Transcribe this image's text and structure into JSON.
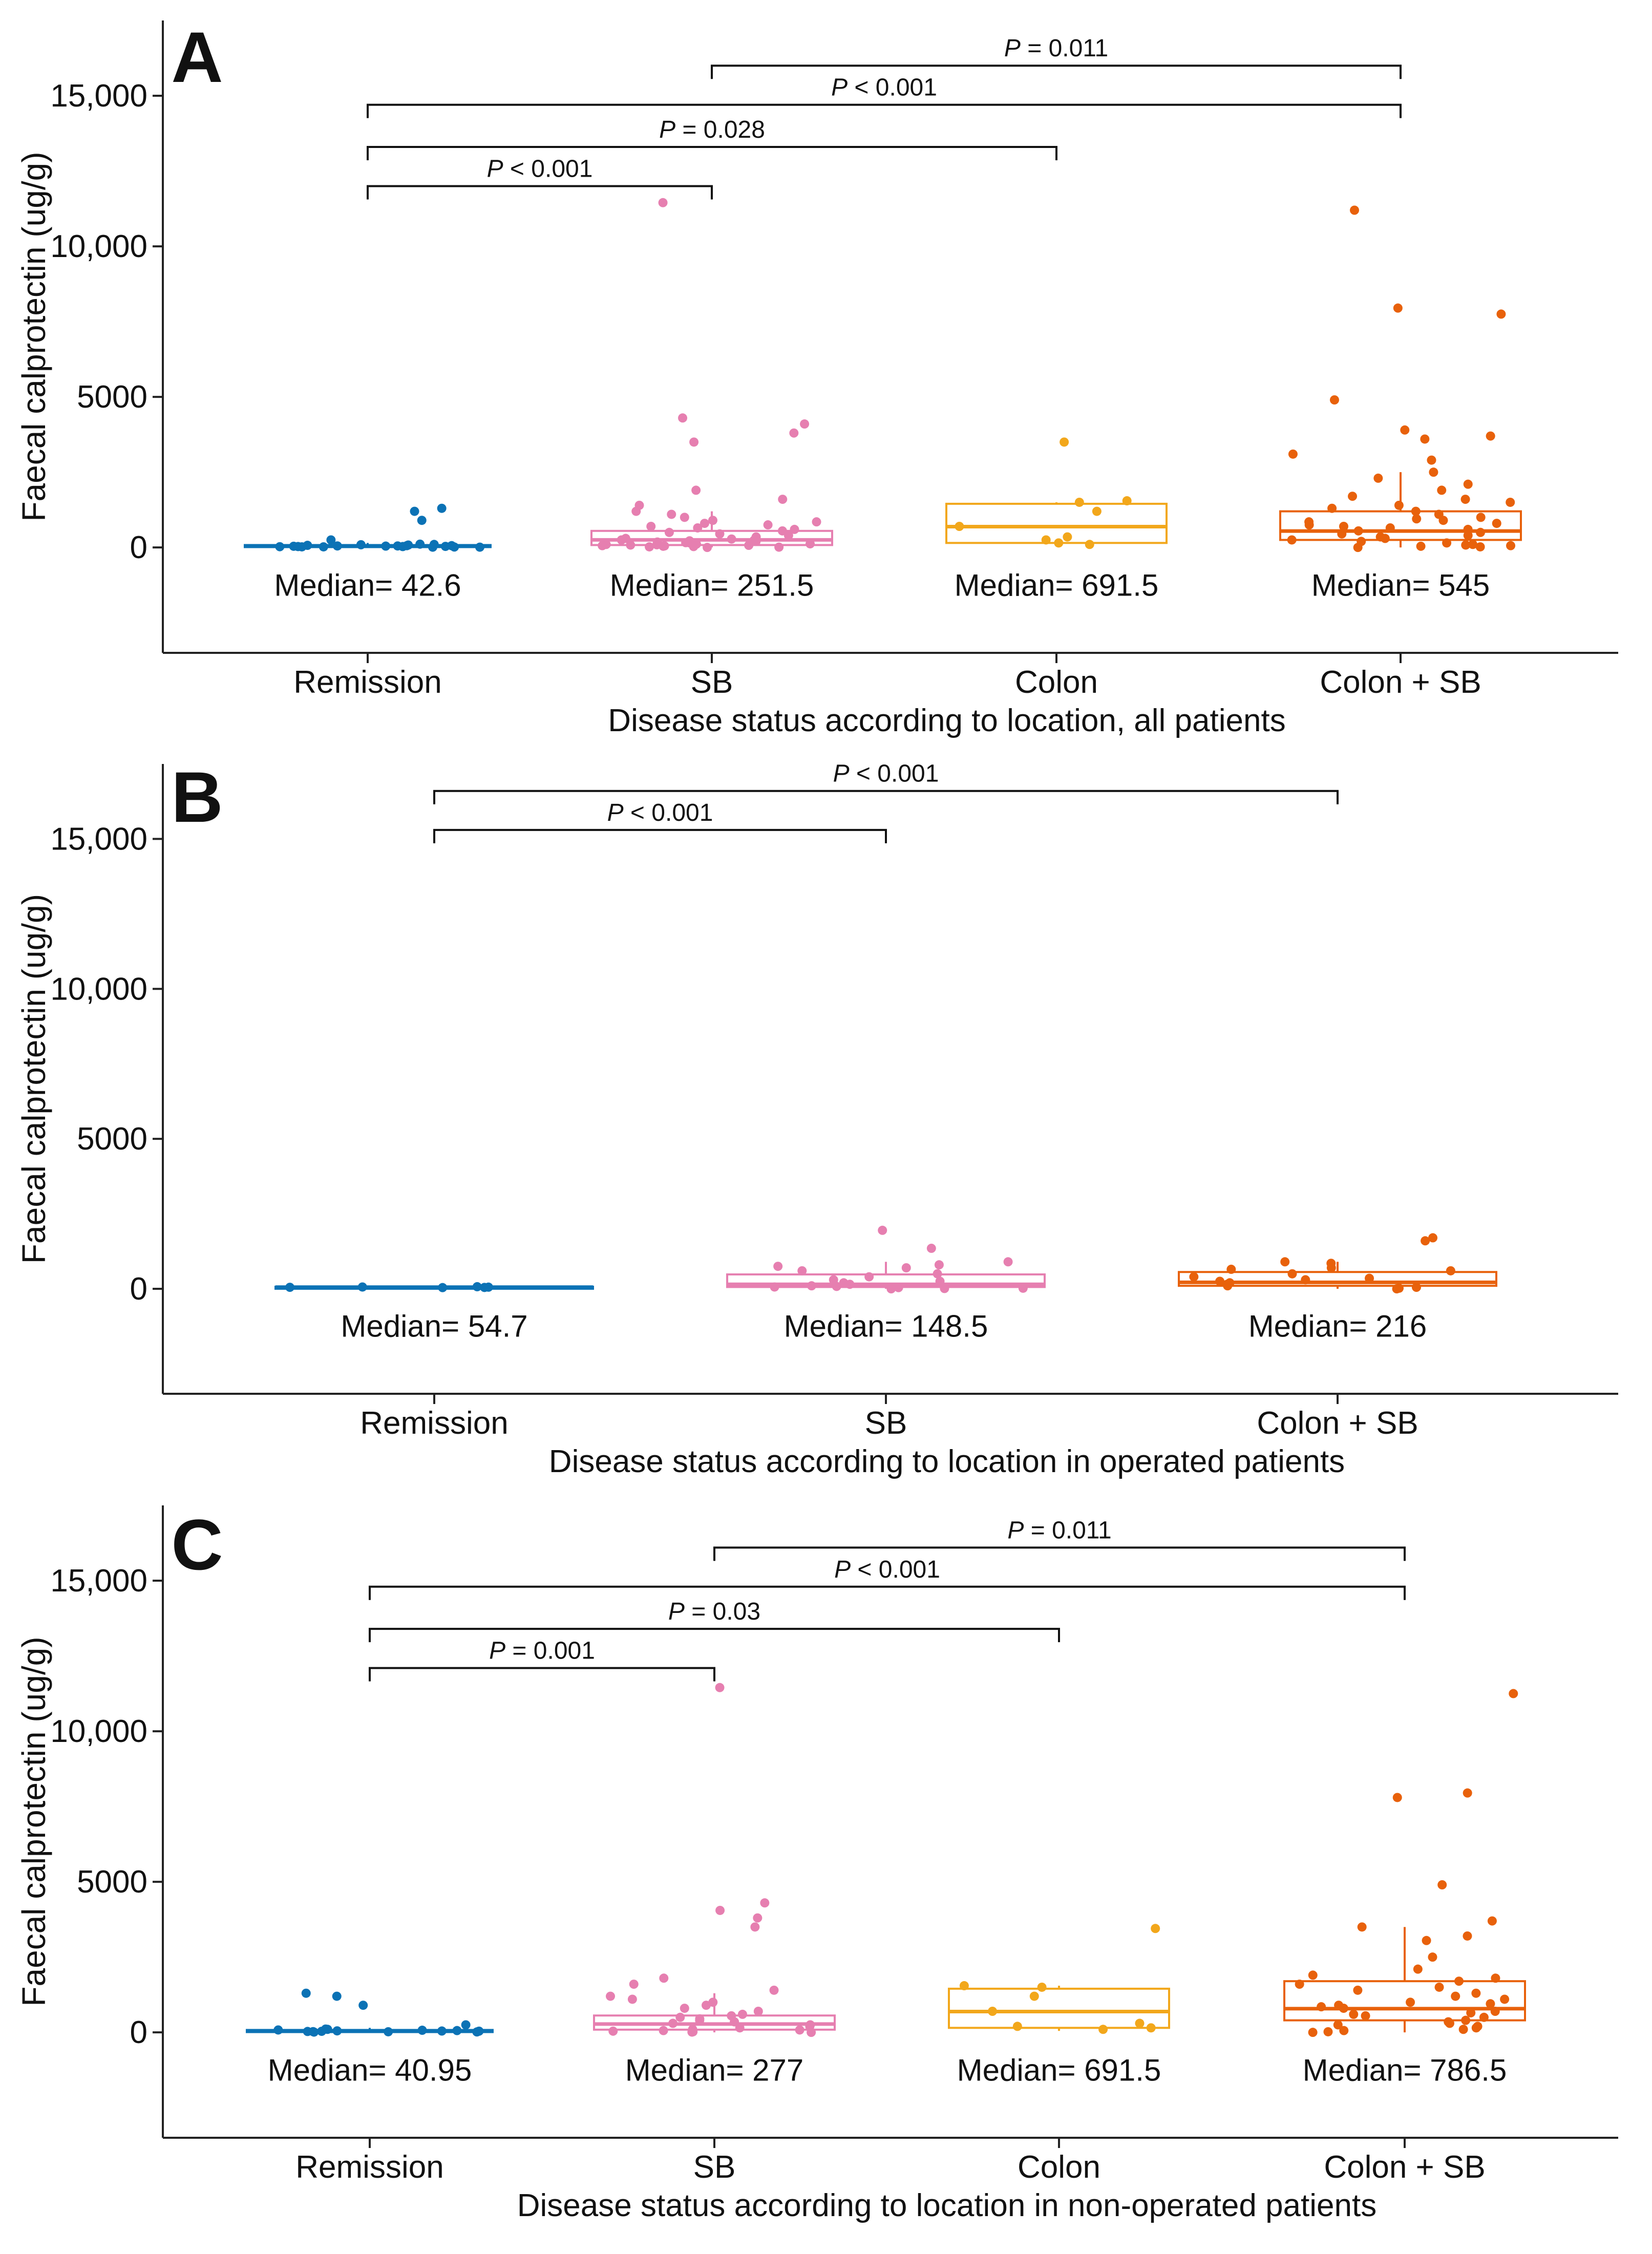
{
  "figure": {
    "colors": {
      "Remission": "#0b72b5",
      "SB": "#e67fb0",
      "Colon": "#f2a71b",
      "Colon + SB": "#e8610b",
      "axis": "#222222"
    }
  },
  "chart_data": [
    {
      "type": "box",
      "panel_label": "A",
      "xlabel": "Disease status according to location, all patients",
      "ylabel": "Faecal calprotectin (ug/g)",
      "ylim": [
        -3500,
        17500
      ],
      "yticks": [
        0,
        5000,
        10000,
        15000
      ],
      "ytick_labels": [
        "0",
        "5000",
        "10,000",
        "15,000"
      ],
      "categories": [
        "Remission",
        "SB",
        "Colon",
        "Colon + SB"
      ],
      "medians": [
        42.6,
        251.5,
        691.5,
        545
      ],
      "median_labels": [
        "Median= 42.6",
        "Median= 251.5",
        "Median= 691.5",
        "Median= 545"
      ],
      "boxes": [
        {
          "q1": 15,
          "median": 42.6,
          "q3": 80,
          "whisker_low": 0,
          "whisker_high": 150
        },
        {
          "q1": 80,
          "median": 251.5,
          "q3": 550,
          "whisker_low": 0,
          "whisker_high": 1200
        },
        {
          "q1": 150,
          "median": 691.5,
          "q3": 1450,
          "whisker_low": 50,
          "whisker_high": 1500
        },
        {
          "q1": 250,
          "median": 545,
          "q3": 1200,
          "whisker_low": 0,
          "whisker_high": 2500
        }
      ],
      "points": [
        [
          30,
          20,
          50,
          10,
          80,
          60,
          40,
          15,
          1200,
          1300,
          900,
          250,
          100,
          30,
          45,
          70,
          20,
          10,
          60,
          35,
          25,
          90,
          110,
          50
        ],
        [
          11450,
          4300,
          4100,
          3800,
          3500,
          1900,
          1600,
          1400,
          1200,
          1100,
          1000,
          900,
          850,
          800,
          750,
          700,
          650,
          600,
          550,
          500,
          450,
          400,
          350,
          300,
          280,
          250,
          240,
          220,
          200,
          180,
          160,
          150,
          140,
          120,
          110,
          100,
          90,
          80,
          70,
          60,
          50,
          40,
          30,
          20,
          10,
          0
        ],
        [
          3500,
          1550,
          1500,
          1200,
          700,
          350,
          250,
          150,
          100
        ],
        [
          11200,
          7950,
          7750,
          4900,
          3900,
          3700,
          3600,
          3100,
          2900,
          2500,
          2300,
          2100,
          1900,
          1700,
          1600,
          1500,
          1400,
          1300,
          1200,
          1100,
          1000,
          950,
          900,
          850,
          800,
          750,
          700,
          650,
          600,
          550,
          500,
          450,
          400,
          350,
          300,
          250,
          200,
          150,
          100,
          80,
          60,
          40,
          20,
          0
        ]
      ],
      "comparisons": [
        {
          "from": 0,
          "to": 1,
          "y": 12000,
          "prefix": "P",
          "text": " < 0.001"
        },
        {
          "from": 0,
          "to": 2,
          "y": 13300,
          "prefix": "P",
          "text": " = 0.028"
        },
        {
          "from": 0,
          "to": 3,
          "y": 14700,
          "prefix": "P",
          "text": " < 0.001"
        },
        {
          "from": 1,
          "to": 3,
          "y": 16000,
          "prefix": "P",
          "text": " = 0.011"
        }
      ]
    },
    {
      "type": "box",
      "panel_label": "B",
      "xlabel": "Disease status according to location in operated patients",
      "ylabel": "Faecal calprotectin (ug/g)",
      "ylim": [
        -3500,
        17500
      ],
      "yticks": [
        0,
        5000,
        10000,
        15000
      ],
      "ytick_labels": [
        "0",
        "5000",
        "10,000",
        "15,000"
      ],
      "categories": [
        "Remission",
        "SB",
        "Colon + SB"
      ],
      "medians": [
        54.7,
        148.5,
        216
      ],
      "median_labels": [
        "Median= 54.7",
        "Median= 148.5",
        "Median= 216"
      ],
      "boxes": [
        {
          "q1": 40,
          "median": 54.7,
          "q3": 70,
          "whisker_low": 30,
          "whisker_high": 80
        },
        {
          "q1": 60,
          "median": 148.5,
          "q3": 480,
          "whisker_low": 0,
          "whisker_high": 900
        },
        {
          "q1": 100,
          "median": 216,
          "q3": 560,
          "whisker_low": 0,
          "whisker_high": 900
        }
      ],
      "points": [
        [
          50,
          60,
          40,
          70,
          55,
          45
        ],
        [
          1950,
          1350,
          900,
          800,
          750,
          700,
          600,
          500,
          400,
          300,
          250,
          200,
          150,
          100,
          80,
          60,
          40,
          20,
          10,
          0
        ],
        [
          1700,
          1600,
          900,
          850,
          700,
          650,
          600,
          500,
          400,
          350,
          300,
          250,
          200,
          150,
          100,
          50,
          20,
          0
        ]
      ],
      "comparisons": [
        {
          "from": 0,
          "to": 1,
          "y": 15300,
          "prefix": "P",
          "text": " < 0.001"
        },
        {
          "from": 0,
          "to": 2,
          "y": 16600,
          "prefix": "P",
          "text": " < 0.001"
        }
      ]
    },
    {
      "type": "box",
      "panel_label": "C",
      "xlabel": "Disease status according to location in non-operated patients",
      "ylabel": "Faecal calprotectin (ug/g)",
      "ylim": [
        -3500,
        17500
      ],
      "yticks": [
        0,
        5000,
        10000,
        15000
      ],
      "ytick_labels": [
        "0",
        "5000",
        "10,000",
        "15,000"
      ],
      "categories": [
        "Remission",
        "SB",
        "Colon",
        "Colon + SB"
      ],
      "medians": [
        40.95,
        277,
        691.5,
        786.5
      ],
      "median_labels": [
        "Median= 40.95",
        "Median= 277",
        "Median= 691.5",
        "Median= 786.5"
      ],
      "boxes": [
        {
          "q1": 10,
          "median": 40.95,
          "q3": 80,
          "whisker_low": 0,
          "whisker_high": 150
        },
        {
          "q1": 90,
          "median": 277,
          "q3": 560,
          "whisker_low": 0,
          "whisker_high": 1300
        },
        {
          "q1": 150,
          "median": 691.5,
          "q3": 1450,
          "whisker_low": 50,
          "whisker_high": 1550
        },
        {
          "q1": 400,
          "median": 786.5,
          "q3": 1700,
          "whisker_low": 0,
          "whisker_high": 3500
        }
      ],
      "points": [
        [
          1200,
          1300,
          900,
          250,
          100,
          80,
          60,
          50,
          40,
          30,
          25,
          20,
          15,
          10,
          70,
          110,
          45,
          35
        ],
        [
          11450,
          4300,
          4050,
          3800,
          3500,
          1800,
          1600,
          1400,
          1200,
          1100,
          1000,
          900,
          800,
          700,
          600,
          550,
          500,
          450,
          400,
          350,
          300,
          250,
          200,
          150,
          100,
          80,
          60,
          40,
          20,
          10,
          0
        ],
        [
          3450,
          1550,
          1500,
          1200,
          700,
          300,
          200,
          150,
          100
        ],
        [
          11250,
          7950,
          7800,
          4900,
          3700,
          3500,
          3200,
          3050,
          2500,
          2100,
          1900,
          1800,
          1700,
          1600,
          1500,
          1400,
          1300,
          1200,
          1100,
          1000,
          950,
          900,
          850,
          800,
          700,
          650,
          600,
          550,
          500,
          400,
          350,
          300,
          250,
          200,
          150,
          100,
          60,
          20,
          0
        ]
      ],
      "comparisons": [
        {
          "from": 0,
          "to": 1,
          "y": 12100,
          "prefix": "P",
          "text": " = 0.001"
        },
        {
          "from": 0,
          "to": 2,
          "y": 13400,
          "prefix": "P",
          "text": " = 0.03"
        },
        {
          "from": 0,
          "to": 3,
          "y": 14800,
          "prefix": "P",
          "text": " < 0.001"
        },
        {
          "from": 1,
          "to": 3,
          "y": 16100,
          "prefix": "P",
          "text": " = 0.011"
        }
      ]
    }
  ]
}
